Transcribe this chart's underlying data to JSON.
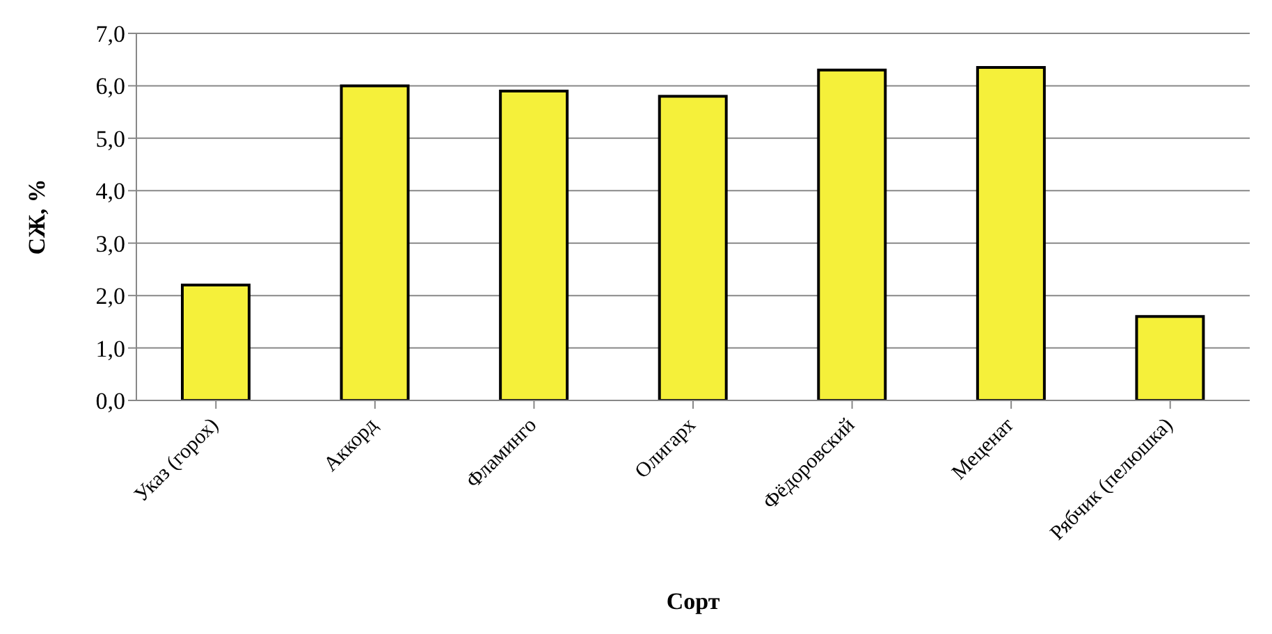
{
  "chart_data": {
    "type": "bar",
    "xlabel": "Сорт",
    "ylabel": "СЖ, %",
    "categories": [
      "Указ (горох)",
      "Аккорд",
      "Фламинго",
      "Олигарх",
      "Фёдоровский",
      "Меценат",
      "Рябчик (пелюшка)"
    ],
    "values": [
      2.2,
      6.0,
      5.9,
      5.8,
      6.3,
      6.35,
      1.6
    ],
    "color": "#f5f03a",
    "ylim": [
      0,
      7
    ],
    "yticks": [
      {
        "value": 0,
        "label": "0,0"
      },
      {
        "value": 1,
        "label": "1,0"
      },
      {
        "value": 2,
        "label": "2,0"
      },
      {
        "value": 3,
        "label": "3,0"
      },
      {
        "value": 4,
        "label": "4,0"
      },
      {
        "value": 5,
        "label": "5,0"
      },
      {
        "value": 6,
        "label": "6,0"
      },
      {
        "value": 7,
        "label": "7,0"
      }
    ],
    "grid": "y"
  }
}
